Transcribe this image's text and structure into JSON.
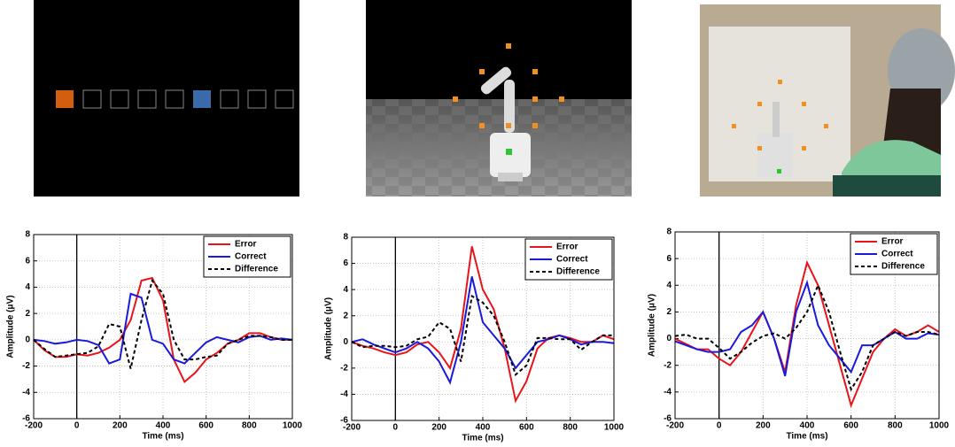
{
  "chart_data": [
    {
      "type": "line",
      "xlabel": "Time (ms)",
      "ylabel": "Amplitude (μV)",
      "x": [
        -200,
        -150,
        -100,
        -50,
        0,
        50,
        100,
        150,
        200,
        250,
        300,
        350,
        400,
        450,
        500,
        550,
        600,
        650,
        700,
        750,
        800,
        850,
        900,
        950,
        1000
      ],
      "series": [
        {
          "name": "Error",
          "color": "#e8141b",
          "style": "solid",
          "values": [
            0,
            -0.8,
            -1.3,
            -1.3,
            -1.1,
            -1.2,
            -1,
            -0.6,
            0,
            1.5,
            4.5,
            4.7,
            3,
            -1.5,
            -3.2,
            -2.5,
            -1.5,
            -1,
            -0.3,
            0,
            0.5,
            0.5,
            0.2,
            0,
            0
          ]
        },
        {
          "name": "Correct",
          "color": "#1a1adb",
          "style": "solid",
          "values": [
            0,
            -0.1,
            -0.3,
            -0.2,
            0,
            -0.1,
            -0.4,
            -1.8,
            -1.5,
            3.5,
            3.2,
            0,
            -0.3,
            -1.5,
            -1.8,
            -1,
            -0.2,
            0.2,
            0,
            -0.2,
            0.2,
            0.3,
            0,
            0.1,
            0
          ]
        },
        {
          "name": "Difference",
          "color": "#000000",
          "style": "dashed",
          "values": [
            0,
            -0.7,
            -1.3,
            -1.2,
            -1.1,
            -1,
            -0.5,
            1.2,
            1,
            -2.2,
            1.5,
            4.5,
            3.5,
            0,
            -1.5,
            -1.5,
            -1.3,
            -1.2,
            -0.3,
            0,
            0.3,
            0.3,
            0.2,
            0,
            0
          ]
        }
      ],
      "xlim": [
        -200,
        1000
      ],
      "ylim": [
        -6,
        8
      ],
      "xticks": [
        -200,
        0,
        200,
        400,
        600,
        800,
        1000
      ],
      "yticks": [
        -6,
        -4,
        -2,
        0,
        2,
        4,
        6,
        8
      ],
      "grid": true,
      "legend": "upper right"
    },
    {
      "type": "line",
      "xlabel": "Time (ms)",
      "ylabel": "Amplitude (μV)",
      "x": [
        -200,
        -150,
        -100,
        -50,
        0,
        50,
        100,
        150,
        200,
        250,
        300,
        350,
        400,
        450,
        500,
        550,
        600,
        650,
        700,
        750,
        800,
        850,
        900,
        950,
        1000
      ],
      "series": [
        {
          "name": "Error",
          "color": "#e8141b",
          "style": "solid",
          "values": [
            0,
            -0.3,
            -0.5,
            -0.8,
            -1,
            -0.8,
            -0.2,
            0,
            -0.8,
            -2,
            1,
            7.3,
            4,
            2.5,
            -0.5,
            -4.5,
            -3,
            -0.5,
            0.3,
            0.5,
            0.3,
            0,
            0,
            0.5,
            0.2
          ]
        },
        {
          "name": "Correct",
          "color": "#1a1adb",
          "style": "solid",
          "values": [
            0,
            0.2,
            -0.2,
            -0.5,
            -0.8,
            -0.5,
            0,
            -0.5,
            -1.5,
            -3.1,
            0,
            5,
            1.5,
            0.5,
            -0.5,
            -2,
            -1,
            0,
            0.2,
            0.5,
            0.2,
            -0.2,
            0,
            0,
            -0.1
          ]
        },
        {
          "name": "Difference",
          "color": "#000000",
          "style": "dashed",
          "values": [
            0,
            -0.4,
            -0.3,
            -0.3,
            -0.4,
            -0.3,
            0.2,
            0.4,
            1.5,
            1,
            -1.5,
            3.5,
            3,
            2,
            0,
            -2.5,
            -1.8,
            0.3,
            0.3,
            0.2,
            0.2,
            -0.6,
            0,
            0.5,
            0.5
          ]
        }
      ],
      "xlim": [
        -200,
        1000
      ],
      "ylim": [
        -6,
        8
      ],
      "xticks": [
        -200,
        0,
        200,
        400,
        600,
        800,
        1000
      ],
      "yticks": [
        -6,
        -4,
        -2,
        0,
        2,
        4,
        6,
        8
      ],
      "grid": true,
      "legend": "upper right"
    },
    {
      "type": "line",
      "xlabel": "Time (ms)",
      "ylabel": "Amplitude (μV)",
      "x": [
        -200,
        -150,
        -100,
        -50,
        0,
        50,
        100,
        150,
        200,
        250,
        300,
        350,
        400,
        450,
        500,
        550,
        600,
        650,
        700,
        750,
        800,
        850,
        900,
        950,
        1000
      ],
      "series": [
        {
          "name": "Error",
          "color": "#e8141b",
          "style": "solid",
          "values": [
            0,
            -0.4,
            -0.8,
            -0.8,
            -1.5,
            -2,
            -1,
            0.5,
            2,
            0,
            -2.5,
            2.5,
            5.7,
            4,
            1,
            -2,
            -5,
            -3,
            -1,
            0,
            0.7,
            0.2,
            0.5,
            1,
            0.5
          ]
        },
        {
          "name": "Correct",
          "color": "#1a1adb",
          "style": "solid",
          "values": [
            -0.2,
            -0.5,
            -0.8,
            -1,
            -1,
            -0.8,
            0.5,
            1,
            2,
            0,
            -2.8,
            2,
            4.2,
            1,
            -0.5,
            -1.5,
            -2.5,
            -0.5,
            -0.5,
            0,
            0.5,
            0,
            0,
            0.4,
            0.3
          ]
        },
        {
          "name": "Difference",
          "color": "#000000",
          "style": "dashed",
          "values": [
            0.2,
            0.3,
            0,
            0,
            -0.7,
            -1.5,
            -1,
            -0.3,
            0.2,
            0.4,
            0,
            0.8,
            2,
            4,
            2,
            -1,
            -3.8,
            -2.5,
            -0.5,
            0,
            0.5,
            0.2,
            0.5,
            0.5,
            0.3
          ]
        }
      ],
      "xlim": [
        -200,
        1000
      ],
      "ylim": [
        -6,
        8
      ],
      "xticks": [
        -200,
        0,
        200,
        400,
        600,
        800,
        1000
      ],
      "yticks": [
        -6,
        -4,
        -2,
        0,
        2,
        4,
        6,
        8
      ],
      "grid": true,
      "legend": "upper right"
    }
  ]
}
